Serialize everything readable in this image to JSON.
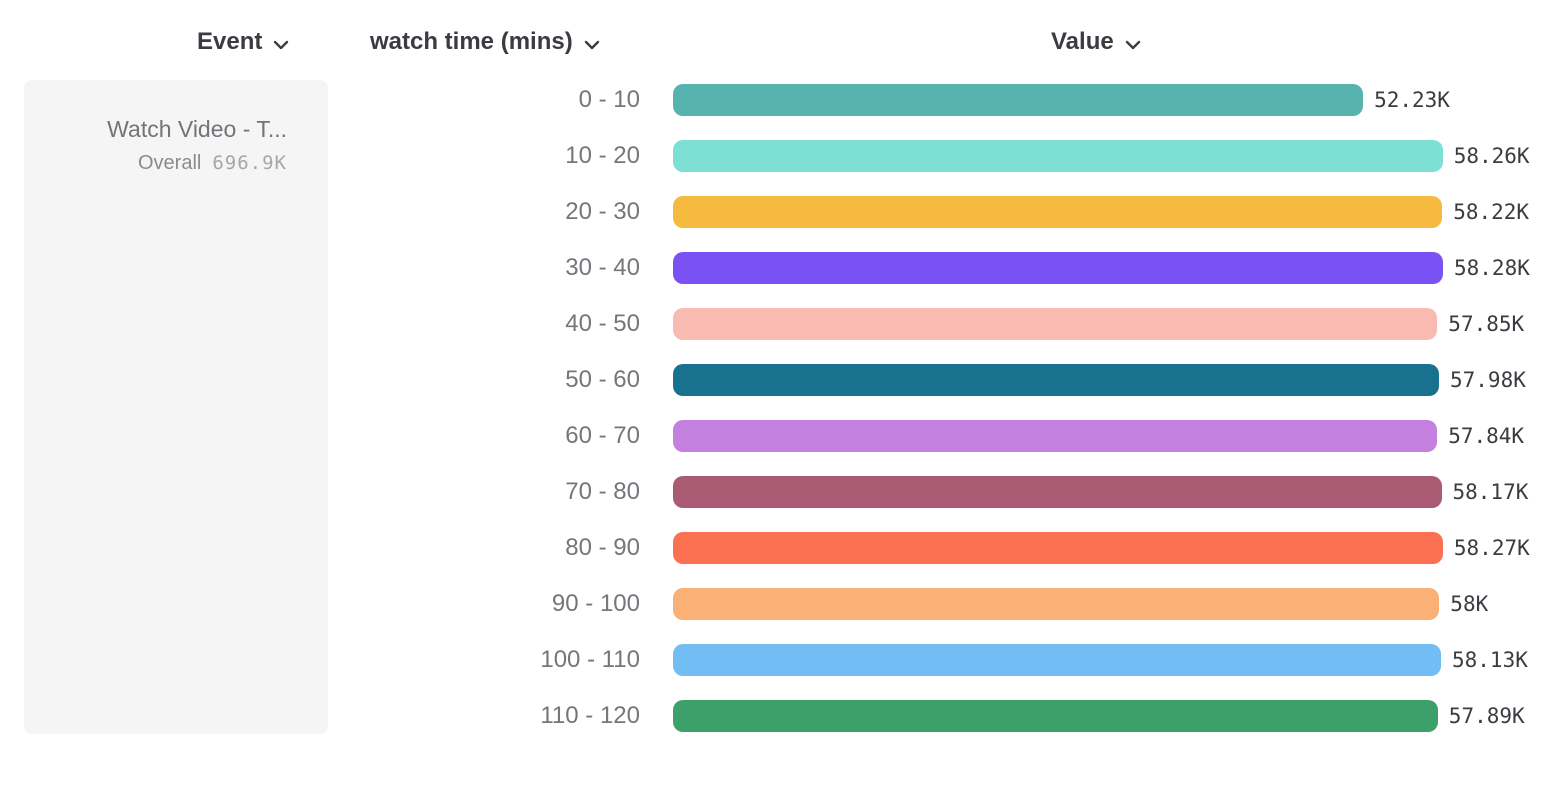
{
  "header": {
    "event_label": "Event",
    "breakdown_label": "watch time (mins)",
    "value_label": "Value"
  },
  "event_card": {
    "title": "Watch Video - T...",
    "overall_label": "Overall",
    "overall_value": "696.9K"
  },
  "chart_data": {
    "type": "bar",
    "orientation": "horizontal",
    "categories": [
      "0 - 10",
      "10 - 20",
      "20 - 30",
      "30 - 40",
      "40 - 50",
      "50 - 60",
      "60 - 70",
      "70 - 80",
      "80 - 90",
      "90 - 100",
      "100 - 110",
      "110 - 120"
    ],
    "values": [
      52230,
      58260,
      58220,
      58280,
      57850,
      57980,
      57840,
      58170,
      58270,
      58000,
      58130,
      57890
    ],
    "value_labels": [
      "52.23K",
      "58.26K",
      "58.22K",
      "58.28K",
      "57.85K",
      "57.98K",
      "57.84K",
      "58.17K",
      "58.27K",
      "58K",
      "58.13K",
      "57.89K"
    ],
    "bar_colors": [
      "#56B3AE",
      "#7EE0D4",
      "#F6BB3E",
      "#7A52F4",
      "#F9BAB2",
      "#17718F",
      "#C480DE",
      "#AA5A72",
      "#FC7052",
      "#FBB075",
      "#72BDF3",
      "#3CA06A"
    ],
    "xlabel": "Value",
    "ylabel": "watch time (mins)",
    "xlim": [
      0,
      58280
    ],
    "grid": false,
    "legend": false
  },
  "ui_colors": {
    "header_text": "#3B3B41",
    "row_label_text": "#75757B",
    "value_text": "#3B3B41",
    "card_background": "#F5F5F6"
  }
}
